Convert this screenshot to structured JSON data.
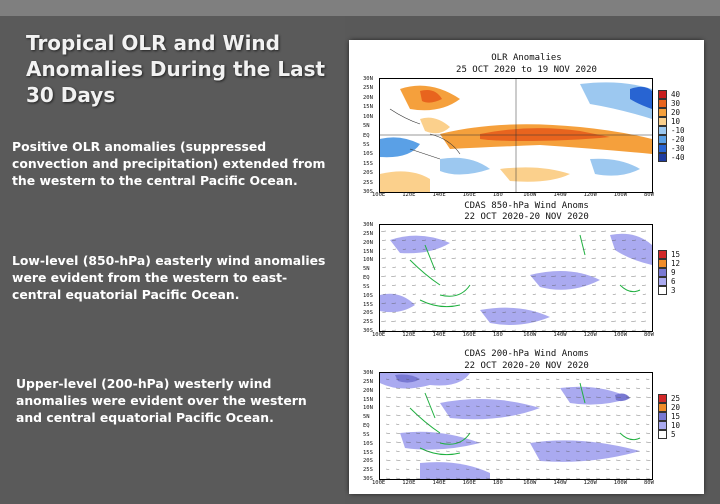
{
  "slide": {
    "title": "Tropical OLR and Wind Anomalies During the Last 30 Days",
    "paragraphs": [
      "Positive OLR anomalies (suppressed convection and precipitation) extended from the western to the central Pacific Ocean.",
      "Low-level (850-hPa) easterly wind anomalies were evident from the western to east-central equatorial Pacific Ocean.",
      "Upper-level (200-hPa) westerly wind anomalies were evident over the western and central equatorial Pacific Ocean."
    ]
  },
  "panels": [
    {
      "title_line1": "OLR Anomalies",
      "title_line2": "25 OCT 2020 to 19 NOV 2020",
      "legend": [
        {
          "label": "40",
          "color": "#c81e1e"
        },
        {
          "label": "30",
          "color": "#e8641e"
        },
        {
          "label": "20",
          "color": "#f5a03c"
        },
        {
          "label": "10",
          "color": "#fbd08c"
        },
        {
          "label": "-10",
          "color": "#9cc8f0"
        },
        {
          "label": "-20",
          "color": "#5aa0e6"
        },
        {
          "label": "-30",
          "color": "#2864d2"
        },
        {
          "label": "-40",
          "color": "#1e3ca0"
        }
      ]
    },
    {
      "title_line1": "CDAS 850-hPa Wind Anoms",
      "title_line2": "22 OCT 2020-20 NOV 2020",
      "legend": [
        {
          "label": "15",
          "color": "#d22828"
        },
        {
          "label": "12",
          "color": "#f08c28"
        },
        {
          "label": "9",
          "color": "#7878d2"
        },
        {
          "label": "6",
          "color": "#aaaaf0"
        },
        {
          "label": "3",
          "color": "#ffffff"
        }
      ]
    },
    {
      "title_line1": "CDAS 200-hPa Wind Anoms",
      "title_line2": "22 OCT 2020-20 NOV 2020",
      "legend": [
        {
          "label": "25",
          "color": "#d22828"
        },
        {
          "label": "20",
          "color": "#f08c28"
        },
        {
          "label": "15",
          "color": "#7878d2"
        },
        {
          "label": "10",
          "color": "#aaaaf0"
        },
        {
          "label": "5",
          "color": "#ffffff"
        }
      ]
    }
  ],
  "lat_labels": [
    "30N",
    "25N",
    "20N",
    "15N",
    "10N",
    "5N",
    "EQ",
    "5S",
    "10S",
    "15S",
    "20S",
    "25S",
    "30S"
  ],
  "lon_labels": [
    "100E",
    "120E",
    "140E",
    "160E",
    "180",
    "160W",
    "140W",
    "120W",
    "100W",
    "80W"
  ]
}
